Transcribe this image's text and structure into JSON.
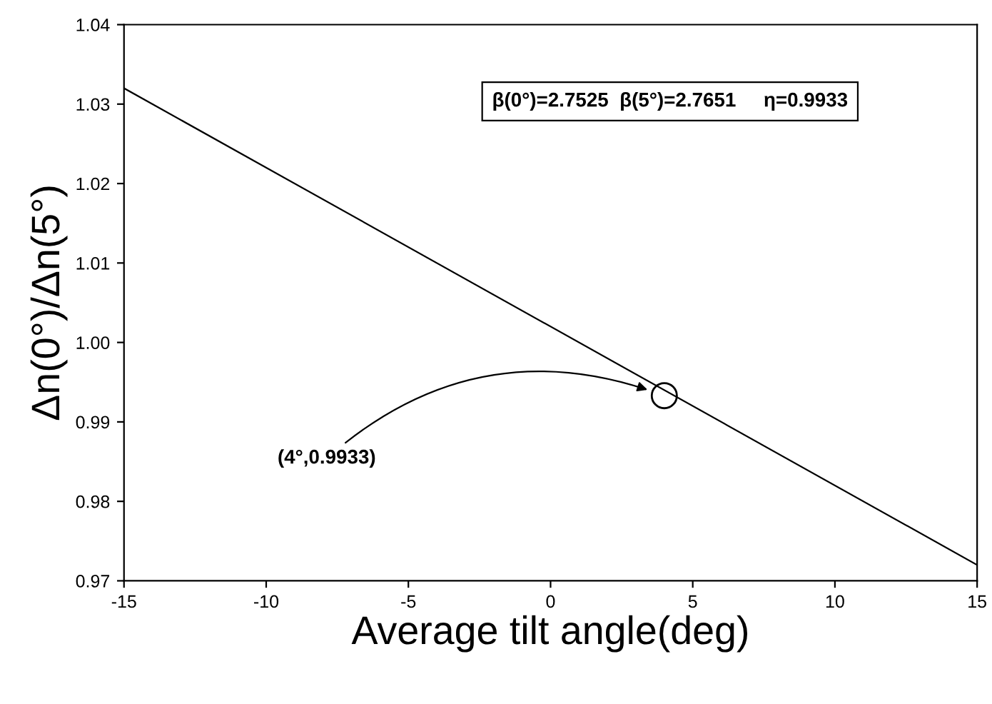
{
  "chart_data": {
    "type": "line",
    "xlabel": "Average tilt angle(deg)",
    "ylabel": "Δn(0°)/Δn(5°)",
    "series": [
      {
        "color": "#000000",
        "x": [
          -15,
          15
        ],
        "values": [
          1.032,
          0.972
        ]
      },
      {
        "type": "scatter",
        "color": "#000000",
        "x": [
          4
        ],
        "values": [
          0.9933
        ],
        "marker": "circle"
      }
    ],
    "xlim": [
      -15,
      15
    ],
    "xticks": [
      -15,
      -10,
      -5,
      0,
      5,
      10,
      15
    ],
    "ylim": [
      0.97,
      1.04
    ],
    "yticks": [
      {
        "value": 0.97,
        "label": "0.97"
      },
      {
        "value": 0.98,
        "label": "0.98"
      },
      {
        "value": 0.99,
        "label": "0.99"
      },
      {
        "value": 1.0,
        "label": "1.00"
      },
      {
        "value": 1.01,
        "label": "1.01"
      },
      {
        "value": 1.02,
        "label": "1.02"
      },
      {
        "value": 1.03,
        "label": "1.03"
      },
      {
        "value": 1.04,
        "label": "1.04"
      }
    ],
    "annotations": [
      "β(0°)=2.7525  β(5°)=2.7651     η=0.9933",
      "(4°,0.9933)"
    ],
    "grid": false,
    "legend": false,
    "marker": "none",
    "line_style": "solid"
  }
}
